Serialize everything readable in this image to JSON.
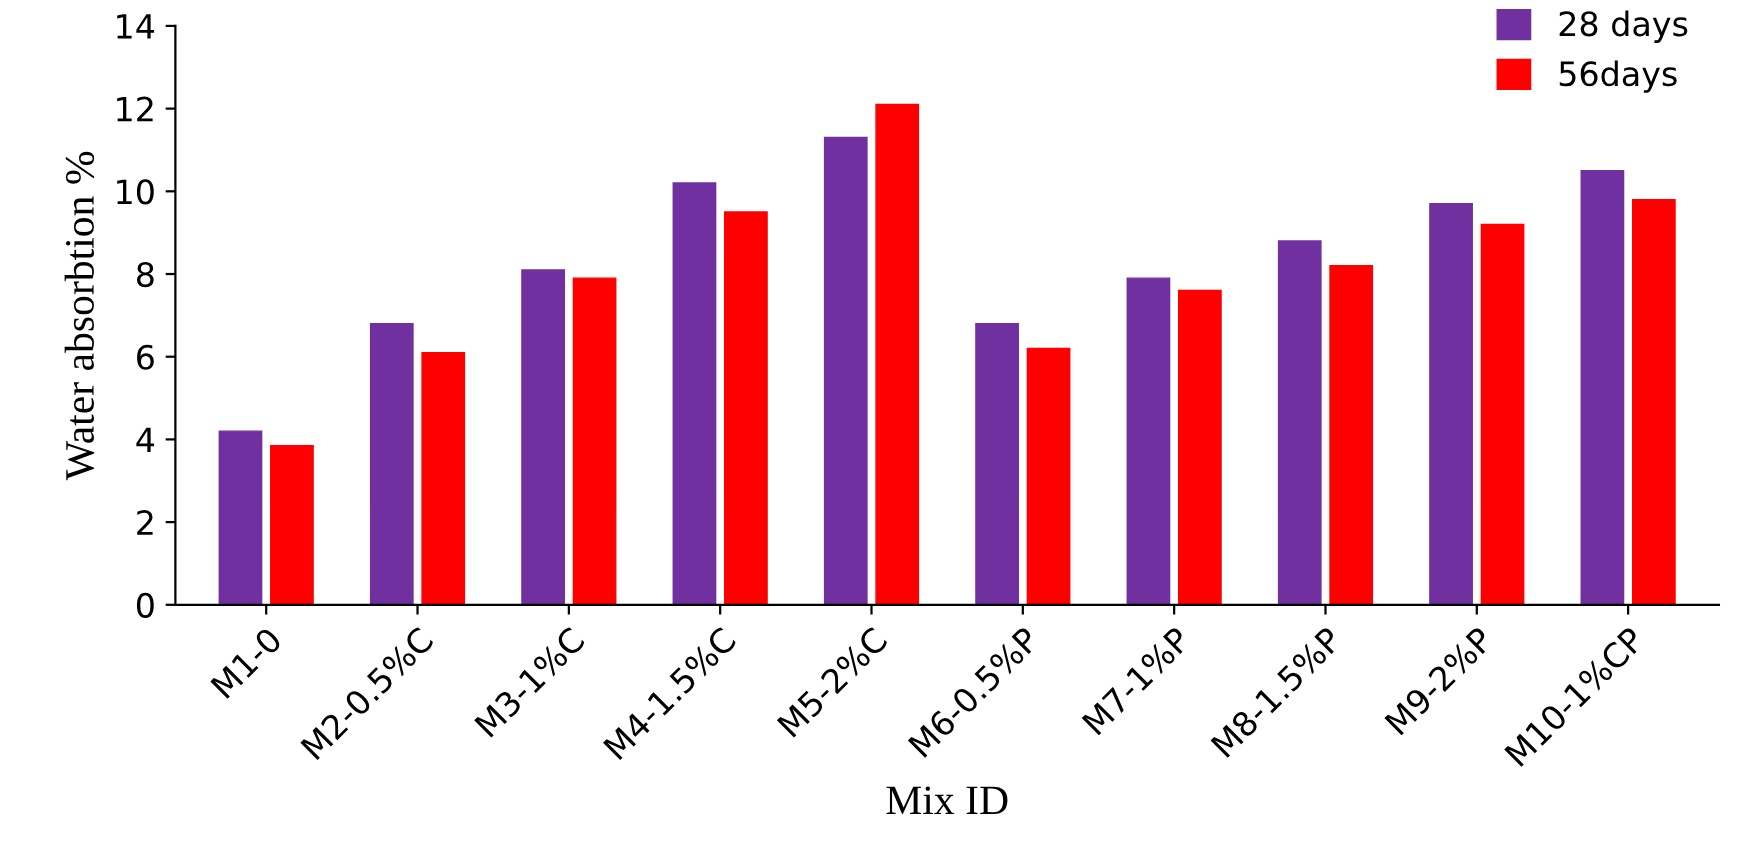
{
  "chart_data": {
    "type": "bar",
    "xlabel": "Mix ID",
    "ylabel": "Water absorbtion %",
    "categories": [
      "M1-0",
      "M2-0.5%C",
      "M3-1%C",
      "M4-1.5%C",
      "M5-2%C",
      "M6-0.5%P",
      "M7-1%P",
      "M8-1.5%P",
      "M9-2%P",
      "M10-1%CP"
    ],
    "series": [
      {
        "name": "28 days",
        "color": "#7030a0",
        "values": [
          4.2,
          6.8,
          8.1,
          10.2,
          11.3,
          6.8,
          7.9,
          8.8,
          9.7,
          10.5
        ]
      },
      {
        "name": "56days",
        "color": "#ff0000",
        "values": [
          3.85,
          6.1,
          7.9,
          9.5,
          12.1,
          6.2,
          7.6,
          8.2,
          9.2,
          9.8
        ]
      }
    ],
    "ylim": [
      0,
      14
    ],
    "yticks": [
      0,
      2,
      4,
      6,
      8,
      10,
      12,
      14
    ],
    "grid": false,
    "legend": "top right"
  }
}
